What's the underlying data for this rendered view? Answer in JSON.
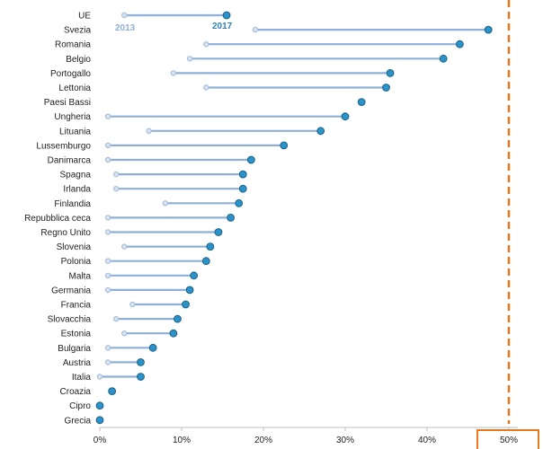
{
  "chart_data": {
    "type": "dumbbell",
    "title": "",
    "xlabel": "",
    "ylabel": "",
    "xlim": [
      0,
      50
    ],
    "x_unit": "%",
    "x_ticks": [
      "0%",
      "10%",
      "20%",
      "30%",
      "40%",
      "50%"
    ],
    "grid": false,
    "legend_placement": "top (on the UE row)",
    "series": [
      {
        "name": "2013",
        "color": "#a6bfdc"
      },
      {
        "name": "2017",
        "color": "#2a93c9"
      }
    ],
    "categories": [
      "UE",
      "Svezia",
      "Romania",
      "Belgio",
      "Portogallo",
      "Lettonia",
      "Paesi Bassi",
      "Ungheria",
      "Lituania",
      "Lussemburgo",
      "Danimarca",
      "Spagna",
      "Irlanda",
      "Finlandia",
      "Repubblica ceca",
      "Regno Unito",
      "Slovenia",
      "Polonia",
      "Malta",
      "Germania",
      "Francia",
      "Slovacchia",
      "Estonia",
      "Bulgaria",
      "Austria",
      "Italia",
      "Croazia",
      "Cipro",
      "Grecia"
    ],
    "values_2013": [
      3,
      19,
      13,
      11,
      9,
      13,
      null,
      1,
      6,
      1,
      1,
      2,
      2,
      8,
      1,
      1,
      3,
      1,
      1,
      1,
      4,
      2,
      3,
      1,
      1,
      0,
      null,
      null,
      null
    ],
    "values_2017": [
      15.5,
      47.5,
      44,
      42,
      35.5,
      35,
      32,
      30,
      27,
      22.5,
      18.5,
      17.5,
      17.5,
      17,
      16,
      14.5,
      13.5,
      13,
      11.5,
      11,
      10.5,
      9.5,
      9,
      6.5,
      5,
      5,
      1.5,
      0,
      0
    ],
    "reference_line": {
      "x": 50,
      "color": "#e8771e",
      "style": "dashed"
    },
    "highlight_box": {
      "around_tick": "50%",
      "color": "#e8771e"
    }
  }
}
